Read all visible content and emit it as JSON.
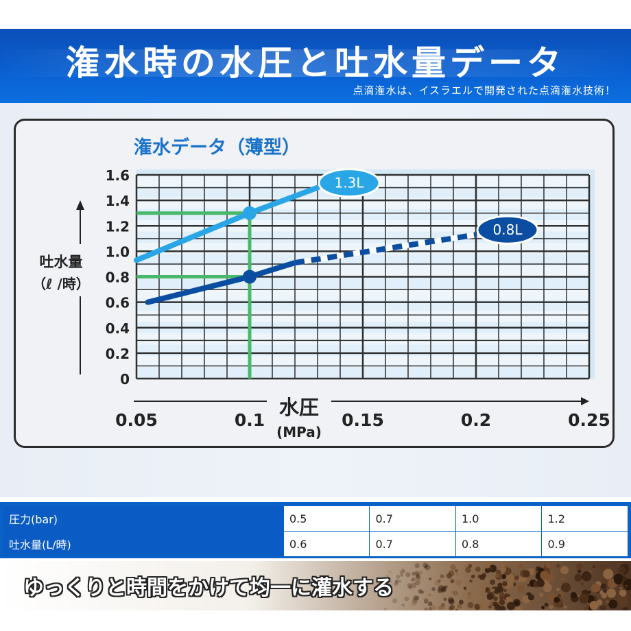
{
  "header": {
    "title": "潅水時の水圧と吐水量データ",
    "subtitle": "点滴潅水は、イスラエルで開発された点滴潅水技術！"
  },
  "chart_data": {
    "type": "line",
    "title": "潅水データ（薄型）",
    "xlabel": "水圧",
    "xlabel_unit": "(MPa)",
    "ylabel": "吐水量",
    "ylabel_unit": "（ℓ /時）",
    "xlim": [
      0.05,
      0.25
    ],
    "ylim": [
      0,
      1.6
    ],
    "x_ticks": [
      "0.05",
      "0.1",
      "0.15",
      "0.2",
      "0.25"
    ],
    "y_ticks": [
      "0",
      "0.2",
      "0.4",
      "0.6",
      "0.8",
      "1.0",
      "1.2",
      "1.4",
      "1.6"
    ],
    "grid": true,
    "series": [
      {
        "name": "1.3L",
        "color": "#2aa6e6",
        "style": "solid",
        "x": [
          0.05,
          0.1,
          0.13
        ],
        "y": [
          0.93,
          1.3,
          1.5
        ]
      },
      {
        "name": "0.8L",
        "color": "#0b4da0",
        "style": "solid-then-dashed",
        "x": [
          0.055,
          0.1,
          0.12,
          0.2
        ],
        "y": [
          0.6,
          0.8,
          0.91,
          1.13
        ],
        "dashed_from_x": 0.12
      }
    ],
    "reference_lines": [
      {
        "color": "#49b86a",
        "x": 0.1,
        "y": 1.3
      },
      {
        "color": "#49b86a",
        "x": 0.1,
        "y": 0.8
      }
    ]
  },
  "table": {
    "rows": [
      {
        "label": "圧力(bar)",
        "values": [
          "0.5",
          "0.7",
          "1.0",
          "1.2"
        ]
      },
      {
        "label": "吐水量(L/時)",
        "values": [
          "0.6",
          "0.7",
          "0.8",
          "0.9"
        ]
      }
    ]
  },
  "footer": {
    "tagline": "ゆっくりと時間をかけて均一に灌水する"
  }
}
